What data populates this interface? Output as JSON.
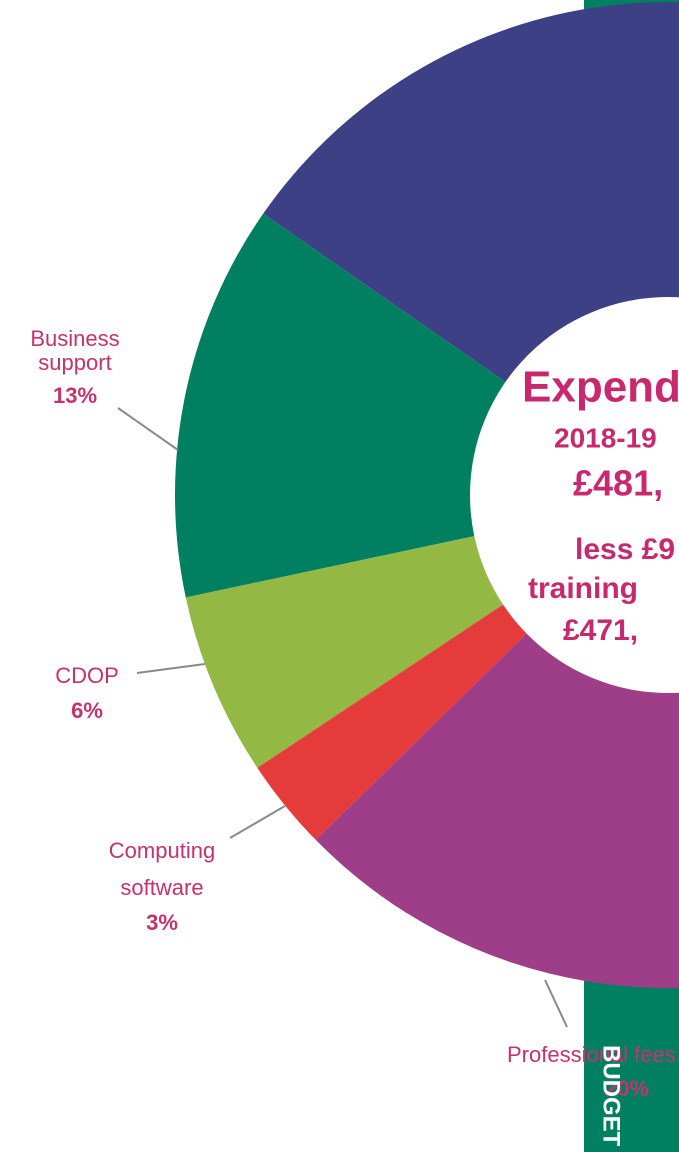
{
  "chart_data": {
    "type": "donut",
    "center_text": [
      "Expend",
      "2018-19",
      "£481,",
      "less £9",
      "training",
      "£471,"
    ],
    "categories": [
      null,
      "Business support",
      "CDOP",
      "Computing software",
      "Professional fees"
    ],
    "values": [
      25,
      13,
      6,
      3,
      20
    ],
    "value_labels": [
      null,
      "13%",
      "6%",
      "3%",
      "20%"
    ],
    "colors": [
      "#3d4084",
      "#008060",
      "#93b843",
      "#e53b3b",
      "#9e3d88"
    ],
    "side_label": "BUDGET"
  }
}
